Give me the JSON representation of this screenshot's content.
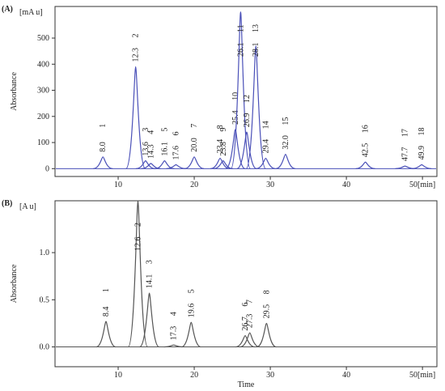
{
  "chart_data": [
    {
      "type": "chromatogram",
      "panel_label": "(A)",
      "y_unit": "[mA u]",
      "y_label": "Absorbance",
      "xlim": [
        1.7,
        51.9
      ],
      "xticks": [
        10,
        20,
        30,
        40,
        {
          "value": 50,
          "label": "50[min]"
        }
      ],
      "ylim": [
        -30,
        621
      ],
      "yticks": [
        0,
        100,
        200,
        300,
        400,
        500
      ],
      "color": "#4a50b8",
      "peaks": {
        "x": [
          8.0,
          12.3,
          13.6,
          14.3,
          16.1,
          17.6,
          20.0,
          23.4,
          23.8,
          25.4,
          26.1,
          26.9,
          28.1,
          29.4,
          32.0,
          42.5,
          47.7,
          49.9
        ],
        "x_labels": [
          "8.0",
          "12.3",
          "13.6",
          "14.3",
          "16.1",
          "17.6",
          "20.0",
          "23.4",
          "23.8",
          "25.4",
          "26.1",
          "26.9",
          "28.1",
          "29.4",
          "32.0",
          "42.5",
          "47.7",
          "49.9"
        ],
        "numbers": [
          "1",
          "2",
          "3",
          "4",
          "5",
          "6",
          "7",
          "8",
          "9",
          "10",
          "11",
          "12",
          "13",
          "14",
          "15",
          "16",
          "17",
          "18"
        ],
        "values": [
          45,
          390,
          30,
          20,
          30,
          15,
          45,
          40,
          30,
          150,
          600,
          140,
          470,
          40,
          55,
          25,
          10,
          15
        ]
      }
    },
    {
      "type": "chromatogram",
      "panel_label": "(B)",
      "y_unit": "[A u]",
      "y_label": "Absorbance",
      "x_label": "Time",
      "xlim": [
        1.7,
        51.9
      ],
      "xticks": [
        10,
        20,
        30,
        40,
        {
          "value": 50,
          "label": "50[min]"
        }
      ],
      "ylim": [
        -0.21,
        1.55
      ],
      "yticks": [
        {
          "value": 0,
          "label": "0.0"
        },
        0.5,
        {
          "value": 1,
          "label": "1.0"
        }
      ],
      "color": "#555555",
      "peaks": {
        "x": [
          8.4,
          12.6,
          14.1,
          17.3,
          19.6,
          26.7,
          27.3,
          29.5
        ],
        "x_labels": [
          "8.4",
          "12.6",
          "14.1",
          "17.3",
          "19.6",
          "26.7",
          "27.3",
          "29.5"
        ],
        "numbers": [
          "1",
          "2",
          "3",
          "4",
          "5",
          "6",
          "7",
          "8"
        ],
        "values": [
          0.27,
          1.55,
          0.57,
          0.02,
          0.26,
          0.12,
          0.15,
          0.25
        ]
      }
    }
  ]
}
